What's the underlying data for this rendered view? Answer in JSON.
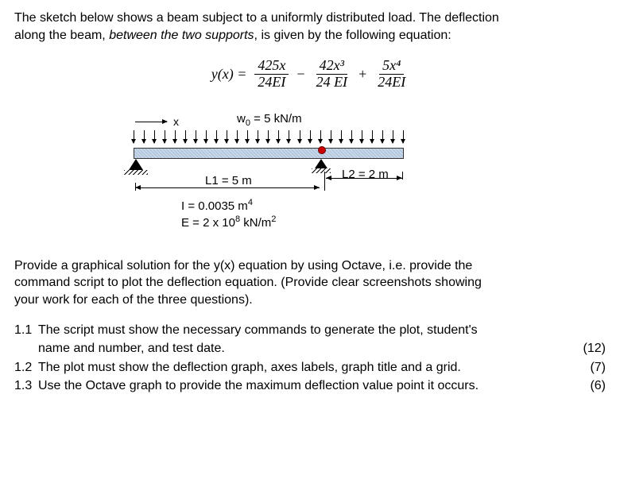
{
  "intro": {
    "line1_a": "The sketch below shows a beam subject to a uniformly distributed load. The deflection",
    "line2_a": "along the beam, ",
    "line2_b": "between the two supports",
    "line2_c": ", is given by the following equation:"
  },
  "equation": {
    "lhs": "y(x) =",
    "t1_num": "425x",
    "t1_den": "24EI",
    "minus": "−",
    "t2_num": "42x³",
    "t2_den": "24 EI",
    "plus": "+",
    "t3_num": "5x⁴",
    "t3_den": "24EI"
  },
  "diagram": {
    "x_label": "x",
    "w_label_pre": "w",
    "w_sub": "0",
    "w_label_post": " = 5 kN/m",
    "L1": "L1 = 5 m",
    "L2": "L2 = 2 m",
    "I_line_pre": "I = 0.0035 m",
    "I_sup": "4",
    "E_line_pre": "E =  2 x 10",
    "E_sup1": "8",
    "E_mid": " kN/m",
    "E_sup2": "2",
    "colors": {
      "beam_fill": "#c8d8e8",
      "roller_dot": "#c00"
    }
  },
  "question_text": {
    "p1": "Provide a graphical solution for the y(x) equation by using Octave, i.e. provide the",
    "p2": "command script to plot the deflection equation. (Provide clear screenshots showing",
    "p3": "your work for each of the three questions)."
  },
  "items": {
    "q11_num": "1.1",
    "q11_l1": "The script must show the necessary commands to generate the plot, student's",
    "q11_l2": "name and number, and test date.",
    "q11_marks": "(12)",
    "q12_num": "1.2",
    "q12_l1": "The plot must show the deflection graph, axes labels, graph title and a grid.",
    "q12_marks": "(7)",
    "q13_num": "1.3",
    "q13_l1": "Use the Octave graph to provide the maximum deflection value point it occurs.",
    "q13_marks": "(6)"
  }
}
